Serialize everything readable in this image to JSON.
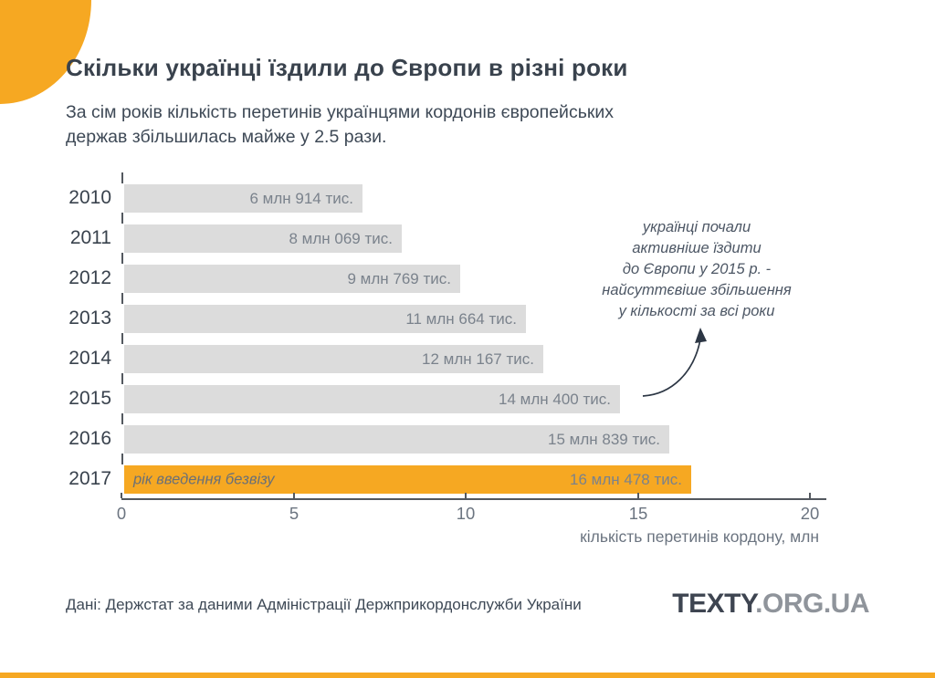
{
  "header": {
    "title": "Скільки українці їздили до Європи в різні роки",
    "subtitle_lines": [
      "За сім років кількість перетинів українцями кордонів європейських",
      "держав збільшилась майже у 2.5 рази."
    ]
  },
  "chart_data": {
    "type": "bar",
    "orientation": "horizontal",
    "categories": [
      "2010",
      "2011",
      "2012",
      "2013",
      "2014",
      "2015",
      "2016",
      "2017"
    ],
    "values": [
      6.914,
      8.069,
      9.769,
      11.664,
      12.167,
      14.4,
      15.839,
      16.478
    ],
    "value_labels": [
      "6 млн 914 тис.",
      "8 млн 069 тис.",
      "9 млн 769 тис.",
      "11 млн 664 тис.",
      "12 млн 167 тис.",
      "14 млн 400 тис.",
      "15 млн 839 тис.",
      "16 млн 478 тис."
    ],
    "highlight_category": "2017",
    "highlight_note": "рік введення безвізу",
    "xlabel": "кількість перетинів кордону, млн",
    "x_ticks": [
      0,
      5,
      10,
      15,
      20
    ],
    "xlim": [
      0,
      20
    ],
    "grid": false,
    "annotation": {
      "lines": [
        "українці почали",
        "активніше їздити",
        "до Європи у 2015 р. -",
        "найсуттєвіше збільшення",
        "у кількості за всі роки"
      ],
      "points_to": "2015"
    }
  },
  "footer": {
    "source": "Дані: Держстат за даними Адміністрації Держприкордонслужби України",
    "logo_primary": "TEXTY",
    "logo_secondary": ".ORG.UA"
  },
  "colors": {
    "accent_orange": "#F6A822",
    "bar_gray": "#DCDCDC",
    "heading_text": "#39424D",
    "value_text": "#7A828C",
    "axis_text": "#6B7480",
    "annotation_text": "#4D5765",
    "logo_secondary_text": "#8F949B"
  }
}
